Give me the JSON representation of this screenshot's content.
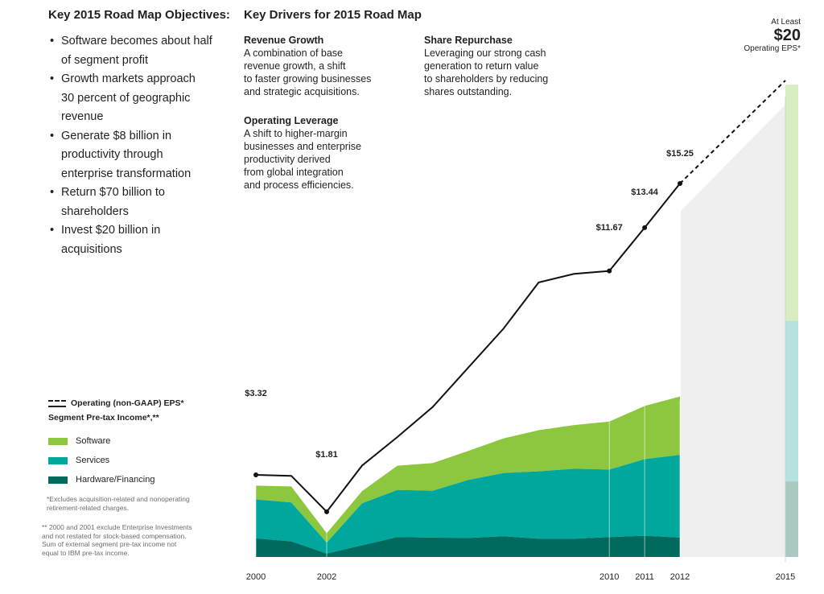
{
  "left": {
    "title": "Key 2015 Road Map Objectives:",
    "objectives": [
      "Software becomes about half of segment profit",
      "Growth markets approach 30 percent of geographic  revenue",
      "Generate $8 billion in productivity through enterprise transformation",
      "Return $70 billion to shareholders",
      "Invest $20 billion in acquisitions"
    ]
  },
  "drivers": {
    "title": "Key Drivers for 2015 Road Map",
    "items": [
      {
        "title": "Revenue Growth",
        "body": "A combination of base\nrevenue growth, a shift\nto faster growing businesses\nand strategic acquisitions."
      },
      {
        "title": "Operating Leverage",
        "body": "A shift to higher-margin\nbusinesses and enterprise\nproductivity derived\nfrom global integration\nand process efficiencies."
      },
      {
        "title": "Share Repurchase",
        "body": "Leveraging our strong cash\ngeneration to return value\nto shareholders by reducing\nshares outstanding."
      }
    ]
  },
  "target": {
    "line1": "At Least",
    "value": "$20",
    "line2": "Operating EPS*"
  },
  "legend": {
    "eps_label": "Operating (non-GAAP) EPS*",
    "segment_label": "Segment Pre-tax Income*,**",
    "items": [
      {
        "label": "Software",
        "color": "#8dc63f"
      },
      {
        "label": "Services",
        "color": "#00a79d"
      },
      {
        "label": "Hardware/Financing",
        "color": "#006a5e"
      }
    ]
  },
  "notes": {
    "n1": "*Excludes acquisition-related and nonoperating\nretirement-related charges.",
    "n2": "** 2000 and 2001 exclude Enterprise Investments\nand not restated for stock-based compensation.\nSum of external segment pre-tax income not\nequal to IBM pre-tax income."
  },
  "chart_data": {
    "type": "area",
    "x": [
      2000,
      2001,
      2002,
      2003,
      2004,
      2005,
      2006,
      2007,
      2008,
      2009,
      2010,
      2011,
      2012
    ],
    "x_tick_labels": [
      "2000",
      "2002",
      "2010",
      "2011",
      "2012",
      "2015"
    ],
    "series": [
      {
        "name": "Hardware/Financing",
        "color": "#006a5e",
        "values": [
          4.3,
          3.6,
          0.8,
          2.7,
          4.6,
          4.5,
          4.4,
          4.8,
          4.2,
          4.2,
          4.6,
          4.9,
          4.5
        ]
      },
      {
        "name": "Services",
        "color": "#00a79d",
        "values": [
          9.0,
          9.0,
          2.5,
          9.7,
          10.9,
          10.8,
          13.4,
          14.6,
          15.6,
          16.2,
          15.6,
          17.7,
          19.1
        ]
      },
      {
        "name": "Software",
        "color": "#8dc63f",
        "values": [
          3.2,
          3.7,
          2.2,
          2.8,
          5.6,
          6.4,
          6.7,
          8.0,
          9.5,
          10.1,
          11.1,
          12.3,
          13.5
        ]
      }
    ],
    "eps_line": {
      "name": "Operating (non-GAAP) EPS*",
      "x": [
        2000,
        2001,
        2002,
        2003,
        2004,
        2005,
        2006,
        2007,
        2008,
        2009,
        2010,
        2011,
        2012
      ],
      "values": [
        3.32,
        3.28,
        1.81,
        3.7,
        4.87,
        6.1,
        7.7,
        9.3,
        11.2,
        11.55,
        11.67,
        13.44,
        15.25
      ]
    },
    "eps_labels": [
      {
        "x": 2000,
        "label": "$3.32"
      },
      {
        "x": 2002,
        "label": "$1.81"
      },
      {
        "x": 2010,
        "label": "$11.67"
      },
      {
        "x": 2011,
        "label": "$13.44"
      },
      {
        "x": 2012,
        "label": "$15.25"
      }
    ],
    "projection": {
      "x": [
        2012,
        2015
      ],
      "values": [
        15.25,
        20
      ],
      "style": "dashed"
    },
    "projection_2015_mix": {
      "Hardware/Financing": 0.16,
      "Services": 0.34,
      "Software": 0.5
    },
    "legend_placement": "left",
    "grid": false
  }
}
